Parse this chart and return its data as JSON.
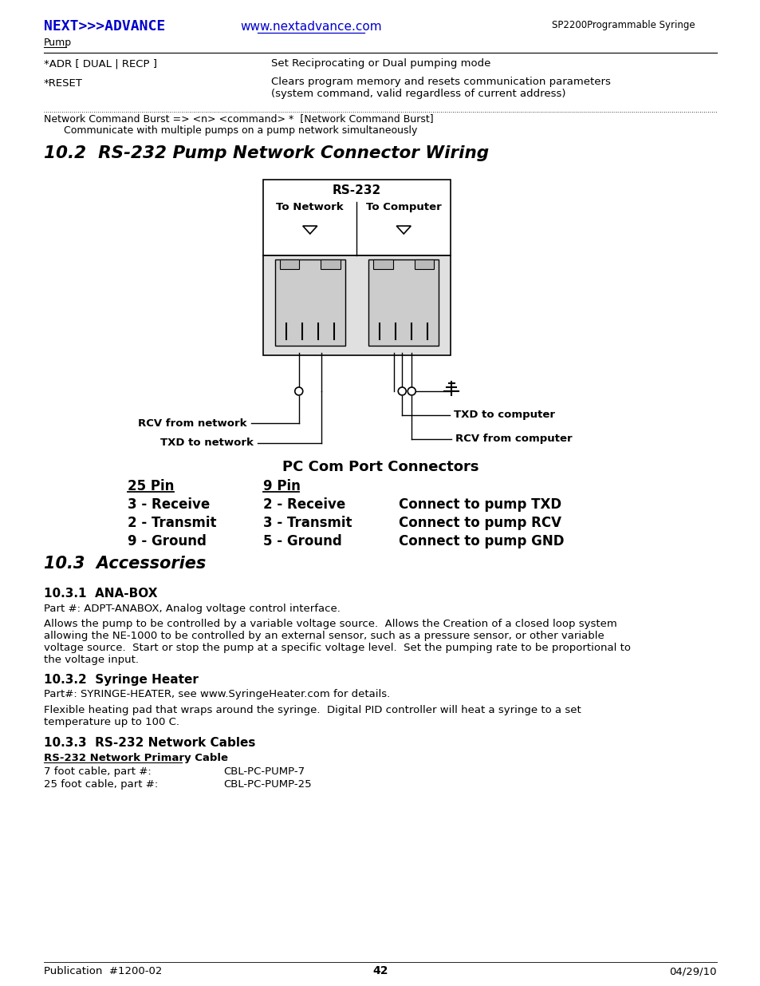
{
  "title_logo": "NEXT>>>ADVANCE",
  "title_logo_color": "#0000CC",
  "header_url": "www.nextadvance.com",
  "header_url_color": "#0000CC",
  "header_right1": "SP2200Programmable Syringe",
  "header_right2": "Pump",
  "line1_left": "*ADR [ DUAL | RECP ]",
  "line1_right": "Set Reciprocating or Dual pumping mode",
  "line2_left": "*RESET",
  "line2_right1": "Clears program memory and resets communication parameters",
  "line2_right2": "(system command, valid regardless of current address)",
  "divider": "- - - - - - - - - - - - - - - - - - - - - - - - - - - - - - - - - - - - - - - - - - - - - - - - - - - - - - - - - - - - - - - - - - - - - - - - - - - - -",
  "network_cmd1": "Network Command Burst => <n> <command> *  [Network Command Burst]",
  "network_cmd2": "        Communicate with multiple pumps on a pump network simultaneously",
  "section_title": "10.2  RS-232 Pump Network Connector Wiring",
  "rs232_label": "RS-232",
  "to_network": "To Network",
  "to_computer": "To Computer",
  "rcv_network": "RCV from network",
  "txd_network": "TXD to network",
  "txd_computer": "TXD to computer",
  "rcv_computer": "RCV from computer",
  "pc_com_title": "PC Com Port Connectors",
  "pin25_header": "25 Pin",
  "pin9_header": "9 Pin",
  "pin_rows": [
    [
      "3 - Receive",
      "2 - Receive",
      "Connect to pump TXD"
    ],
    [
      "2 - Transmit",
      "3 - Transmit",
      "Connect to pump RCV"
    ],
    [
      "9 - Ground",
      "5 - Ground",
      "Connect to pump GND"
    ]
  ],
  "section103": "10.3  Accessories",
  "section1031": "10.3.1  ANA-BOX",
  "part_anabox": "Part #: ADPT-ANABOX, Analog voltage control interface.",
  "anabox_desc1": "Allows the pump to be controlled by a variable voltage source.  Allows the Creation of a closed loop system",
  "anabox_desc2": "allowing the NE-1000 to be controlled by an external sensor, such as a pressure sensor, or other variable",
  "anabox_desc3": "voltage source.  Start or stop the pump at a specific voltage level.  Set the pumping rate to be proportional to",
  "anabox_desc4": "the voltage input.",
  "section1032": "10.3.2  Syringe Heater",
  "part_heater": "Part#: SYRINGE-HEATER, see www.SyringeHeater.com for details.",
  "heater_desc1": "Flexible heating pad that wraps around the syringe.  Digital PID controller will heat a syringe to a set",
  "heater_desc2": "temperature up to 100 C.",
  "section1033": "10.3.3  RS-232 Network Cables",
  "cable_subheader": "RS-232 Network Primary Cable",
  "cable_7ft": "7 foot cable, part #:",
  "cable_7ft_val": "CBL-PC-PUMP-7",
  "cable_25ft": "25 foot cable, part #:",
  "cable_25ft_val": "CBL-PC-PUMP-25",
  "footer_left": "Publication  #1200-02",
  "footer_center": "42",
  "footer_right": "04/29/10",
  "bg_color": "#ffffff",
  "text_color": "#000000"
}
